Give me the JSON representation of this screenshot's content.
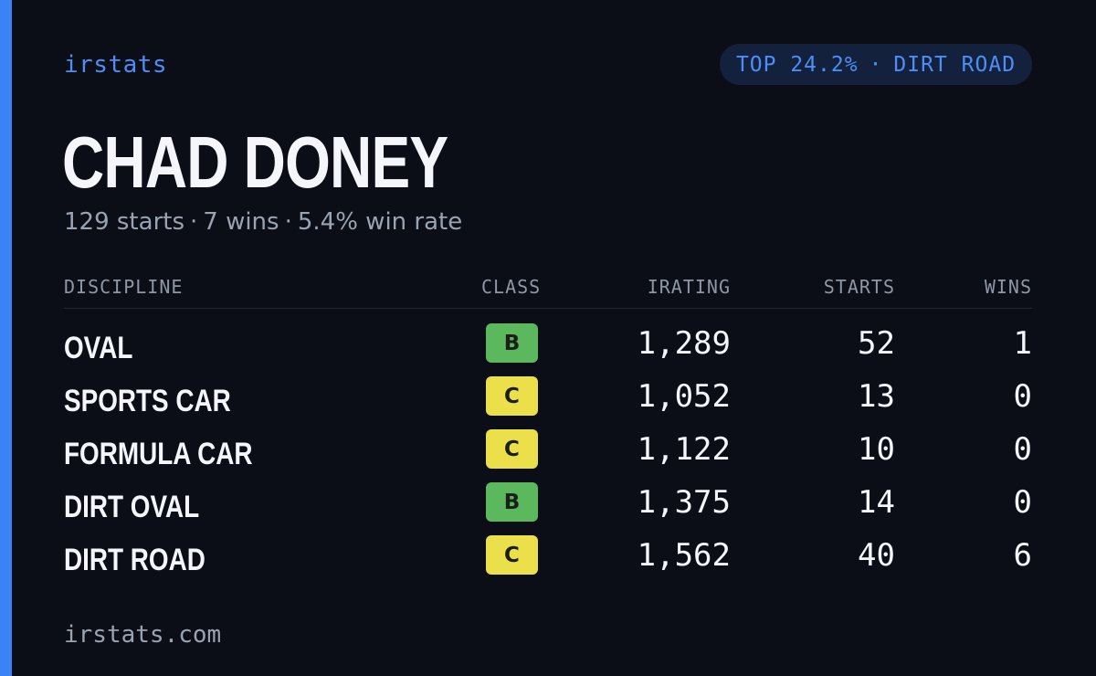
{
  "brand": "irstats",
  "badge": {
    "top": "TOP 24.2%",
    "separator": "·",
    "discipline": "DIRT ROAD"
  },
  "driver": {
    "name": "CHAD DONEY"
  },
  "summary": {
    "starts": "129 starts",
    "wins": "7 wins",
    "win_rate": "5.4% win rate",
    "separator": "·"
  },
  "table": {
    "headers": {
      "discipline": "DISCIPLINE",
      "class": "CLASS",
      "irating": "IRATING",
      "starts": "STARTS",
      "wins": "WINS"
    },
    "rows": [
      {
        "discipline": "OVAL",
        "class": "B",
        "irating": "1,289",
        "starts": "52",
        "wins": "1"
      },
      {
        "discipline": "SPORTS CAR",
        "class": "C",
        "irating": "1,052",
        "starts": "13",
        "wins": "0"
      },
      {
        "discipline": "FORMULA CAR",
        "class": "C",
        "irating": "1,122",
        "starts": "10",
        "wins": "0"
      },
      {
        "discipline": "DIRT OVAL",
        "class": "B",
        "irating": "1,375",
        "starts": "14",
        "wins": "0"
      },
      {
        "discipline": "DIRT ROAD",
        "class": "C",
        "irating": "1,562",
        "starts": "40",
        "wins": "6"
      }
    ]
  },
  "class_colors": {
    "B": "#5cb85c",
    "C": "#ece04a"
  },
  "colors": {
    "accent": "#3b82f6",
    "background": "#0b0e17"
  },
  "footer": "irstats.com"
}
